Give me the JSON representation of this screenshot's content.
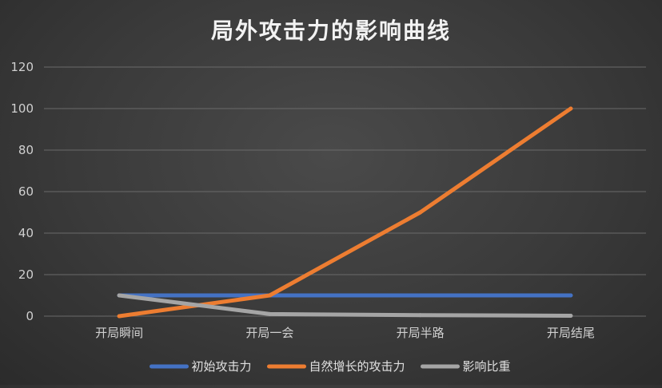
{
  "chart_data": {
    "type": "line",
    "title": "局外攻击力的影响曲线",
    "categories": [
      "开局瞬间",
      "开局一会",
      "开局半路",
      "开局结尾"
    ],
    "ylim": [
      0,
      120
    ],
    "yticks": [
      0,
      20,
      40,
      60,
      80,
      100,
      120
    ],
    "grid": true,
    "legend_position": "bottom",
    "series": [
      {
        "name": "初始攻击力",
        "color": "#4472c4",
        "values": [
          10,
          10,
          10,
          10
        ]
      },
      {
        "name": "自然增长的攻击力",
        "color": "#ed7d31",
        "values": [
          0,
          10,
          50,
          100
        ]
      },
      {
        "name": "影响比重",
        "color": "#a5a5a5",
        "values": [
          10,
          1,
          0.5,
          0.2
        ]
      }
    ]
  }
}
